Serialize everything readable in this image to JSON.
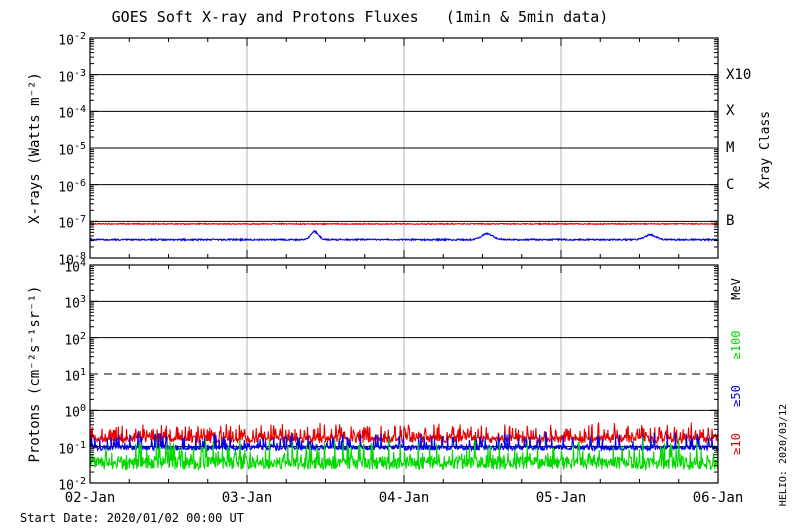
{
  "title": "GOES Soft X-ray and Protons Fluxes   (1min & 5min data)",
  "start_date_label": "Start Date: 2020/01/02 00:00 UT",
  "stamp": "HELIO: 2020/03/12",
  "colors": {
    "red": "#e80000",
    "blue": "#0000e8",
    "green": "#00d800",
    "grid_gray": "#b4b4b4",
    "axis": "#000000"
  },
  "chart_data": [
    {
      "type": "line",
      "panel": "xray-flux",
      "ylabel": "X-rays (Watts m⁻²)",
      "right_axis_title": "Xray Class",
      "ylim": [
        1e-08,
        0.01
      ],
      "y_scale": "log",
      "y_tick_exponents": [
        -2,
        -3,
        -4,
        -5,
        -6,
        -7,
        -8
      ],
      "x_tick_labels": [
        "02-Jan",
        "03-Jan",
        "04-Jan",
        "05-Jan",
        "06-Jan"
      ],
      "x_minor_ticks_per_day": 4,
      "day_gridlines": [
        1,
        2,
        3
      ],
      "class_lines": [
        {
          "label": "X10",
          "exp": -3
        },
        {
          "label": "X",
          "exp": -4
        },
        {
          "label": "M",
          "exp": -5
        },
        {
          "label": "C",
          "exp": -6
        },
        {
          "label": "B",
          "exp": -7
        }
      ],
      "series": [
        {
          "name": "xray-long-red",
          "color": "#e80000",
          "baseline_log": -7.07,
          "typical_flux": 8.5e-08,
          "noise_dex": 0.013,
          "points_per_day": 340,
          "spike_prob": 0,
          "spike_dex": 0,
          "bumps": []
        },
        {
          "name": "xray-short-blue",
          "color": "#0000e8",
          "baseline_log": -7.5,
          "typical_flux": 3.2e-08,
          "noise_dex": 0.02,
          "points_per_day": 340,
          "spike_prob": 0,
          "spike_dex": 0,
          "bumps": [
            {
              "center_day": 1.43,
              "height_dex": 0.22,
              "width_day": 0.035
            },
            {
              "center_day": 2.53,
              "height_dex": 0.16,
              "width_day": 0.05
            },
            {
              "center_day": 3.57,
              "height_dex": 0.13,
              "width_day": 0.05
            }
          ]
        }
      ]
    },
    {
      "type": "line",
      "panel": "proton-flux",
      "ylabel": "Protons (cm⁻²s⁻¹sr⁻¹)",
      "right_axis_title": "MeV",
      "ylim": [
        0.01,
        10000.0
      ],
      "y_scale": "log",
      "y_tick_exponents": [
        4,
        3,
        2,
        1,
        0,
        -1,
        -2
      ],
      "x_tick_labels": [
        "02-Jan",
        "03-Jan",
        "04-Jan",
        "05-Jan",
        "06-Jan"
      ],
      "x_minor_ticks_per_day": 4,
      "day_gridlines": [
        1,
        2,
        3
      ],
      "solid_grid_exponents": [
        3,
        2,
        0,
        -1
      ],
      "dashed_grid_exponent": 1,
      "right_series_labels": [
        {
          "label": "≥100",
          "color": "#00d800"
        },
        {
          "label": "≥50",
          "color": "#0000e8"
        },
        {
          "label": "≥10",
          "color": "#e80000"
        }
      ],
      "series": [
        {
          "name": "protons-ge10",
          "color": "#e80000",
          "baseline_log": -0.8,
          "typical_flux": 0.18,
          "noise_dex": 0.1,
          "points_per_day": 288,
          "spike_prob": 0.35,
          "spike_dex": 0.38,
          "bumps": []
        },
        {
          "name": "protons-ge50",
          "color": "#0000e8",
          "baseline_log": -1.03,
          "typical_flux": 0.095,
          "noise_dex": 0.07,
          "points_per_day": 288,
          "spike_prob": 0.18,
          "spike_dex": 0.4,
          "bumps": []
        },
        {
          "name": "protons-ge100",
          "color": "#00d800",
          "baseline_log": -1.45,
          "typical_flux": 0.038,
          "noise_dex": 0.18,
          "points_per_day": 288,
          "spike_prob": 0.22,
          "spike_dex": 0.55,
          "bumps": []
        }
      ]
    }
  ]
}
